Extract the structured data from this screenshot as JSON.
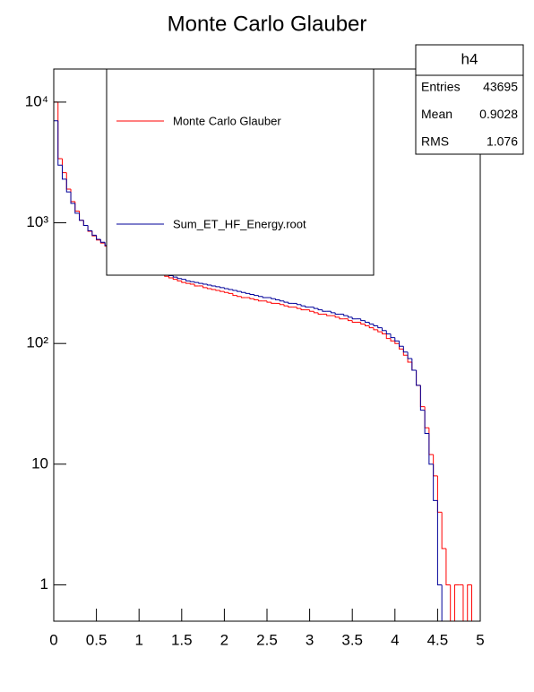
{
  "chart_data": {
    "type": "histogram",
    "title": "Monte Carlo Glauber",
    "log_y": true,
    "xlim": [
      0,
      5
    ],
    "ylim": [
      0.5,
      18800
    ],
    "xticks": [
      0,
      0.5,
      1,
      1.5,
      2,
      2.5,
      3,
      3.5,
      4,
      4.5,
      5
    ],
    "yticks": [
      1,
      10,
      {
        "value": 100,
        "label": "10²"
      },
      {
        "value": 1000,
        "label": "10³"
      },
      {
        "value": 10000,
        "label": "10⁴"
      }
    ],
    "bins": [
      0,
      0.05,
      0.1,
      0.15,
      0.2,
      0.25,
      0.3,
      0.35,
      0.4,
      0.45,
      0.5,
      0.55,
      0.6,
      0.65,
      0.7,
      0.75,
      0.8,
      0.85,
      0.9,
      0.95,
      1,
      1.05,
      1.1,
      1.15,
      1.2,
      1.25,
      1.3,
      1.35,
      1.4,
      1.45,
      1.5,
      1.55,
      1.6,
      1.65,
      1.7,
      1.75,
      1.8,
      1.85,
      1.9,
      1.95,
      2,
      2.05,
      2.1,
      2.15,
      2.2,
      2.25,
      2.3,
      2.35,
      2.4,
      2.45,
      2.5,
      2.55,
      2.6,
      2.65,
      2.7,
      2.75,
      2.8,
      2.85,
      2.9,
      2.95,
      3,
      3.05,
      3.1,
      3.15,
      3.2,
      3.25,
      3.3,
      3.35,
      3.4,
      3.45,
      3.5,
      3.55,
      3.6,
      3.65,
      3.7,
      3.75,
      3.8,
      3.85,
      3.9,
      3.95,
      4,
      4.05,
      4.1,
      4.15,
      4.2,
      4.25,
      4.3,
      4.35,
      4.4,
      4.45,
      4.5,
      4.55,
      4.6,
      4.65,
      4.7,
      4.75,
      4.8,
      4.85,
      4.9,
      4.95,
      5
    ],
    "series": [
      {
        "name": "Monte Carlo Glauber",
        "color": "#ff0000",
        "values": [
          10000,
          3400,
          2600,
          1900,
          1500,
          1250,
          1050,
          950,
          850,
          780,
          720,
          680,
          640,
          600,
          570,
          540,
          520,
          500,
          480,
          460,
          440,
          420,
          410,
          395,
          380,
          370,
          360,
          350,
          340,
          330,
          320,
          315,
          310,
          300,
          300,
          290,
          285,
          280,
          275,
          270,
          265,
          260,
          250,
          245,
          240,
          240,
          235,
          230,
          225,
          225,
          220,
          215,
          215,
          210,
          205,
          200,
          200,
          195,
          190,
          190,
          185,
          180,
          175,
          175,
          170,
          170,
          165,
          160,
          160,
          155,
          150,
          150,
          145,
          140,
          135,
          130,
          125,
          120,
          110,
          105,
          100,
          90,
          80,
          70,
          60,
          45,
          30,
          20,
          12,
          8,
          4,
          2,
          1,
          0,
          1,
          1,
          0,
          1,
          0,
          0
        ]
      },
      {
        "name": "Sum_ET_HF_Energy.root",
        "color": "#000099",
        "values": [
          7000,
          3000,
          2300,
          1800,
          1450,
          1200,
          1050,
          950,
          860,
          790,
          730,
          690,
          650,
          610,
          580,
          555,
          530,
          510,
          490,
          470,
          450,
          435,
          420,
          405,
          395,
          385,
          375,
          365,
          355,
          345,
          340,
          330,
          325,
          320,
          315,
          310,
          305,
          300,
          295,
          290,
          285,
          280,
          275,
          270,
          265,
          260,
          255,
          250,
          245,
          240,
          240,
          235,
          230,
          225,
          220,
          215,
          215,
          210,
          205,
          200,
          200,
          195,
          190,
          185,
          185,
          180,
          175,
          175,
          170,
          165,
          160,
          160,
          155,
          150,
          145,
          140,
          135,
          128,
          120,
          112,
          105,
          95,
          85,
          75,
          60,
          45,
          28,
          18,
          10,
          5,
          1,
          0,
          0,
          0,
          0,
          0,
          0,
          0,
          0,
          0
        ]
      }
    ],
    "stats": {
      "title": "h4",
      "rows": [
        {
          "label": "Entries",
          "value": 43695
        },
        {
          "label": "Mean",
          "value": 0.9028
        },
        {
          "label": "RMS",
          "value": 1.076
        }
      ]
    }
  }
}
